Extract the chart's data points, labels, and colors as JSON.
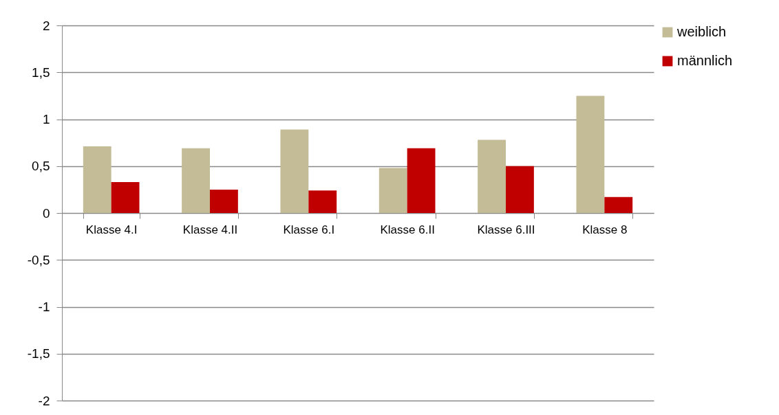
{
  "chart_data": {
    "type": "bar",
    "categories": [
      "Klasse 4.I",
      "Klasse 4.II",
      "Klasse 6.I",
      "Klasse 6.II",
      "Klasse 6.III",
      "Klasse 8"
    ],
    "series": [
      {
        "name": "weiblich",
        "color": "#c4bc96",
        "values": [
          0.71,
          0.69,
          0.89,
          0.48,
          0.78,
          1.25
        ]
      },
      {
        "name": "männlich",
        "color": "#c00000",
        "values": [
          0.33,
          0.25,
          0.24,
          0.69,
          0.5,
          0.17
        ]
      }
    ],
    "ylim": [
      -2,
      2
    ],
    "yticks": [
      {
        "value": -2,
        "label": "-2"
      },
      {
        "value": -1.5,
        "label": "-1,5"
      },
      {
        "value": -1,
        "label": "-1"
      },
      {
        "value": -0.5,
        "label": "-0,5"
      },
      {
        "value": 0,
        "label": "0"
      },
      {
        "value": 0.5,
        "label": "0,5"
      },
      {
        "value": 1,
        "label": "1"
      },
      {
        "value": 1.5,
        "label": "1,5"
      },
      {
        "value": 2,
        "label": "2"
      }
    ],
    "grid": "y",
    "legend": "right"
  }
}
